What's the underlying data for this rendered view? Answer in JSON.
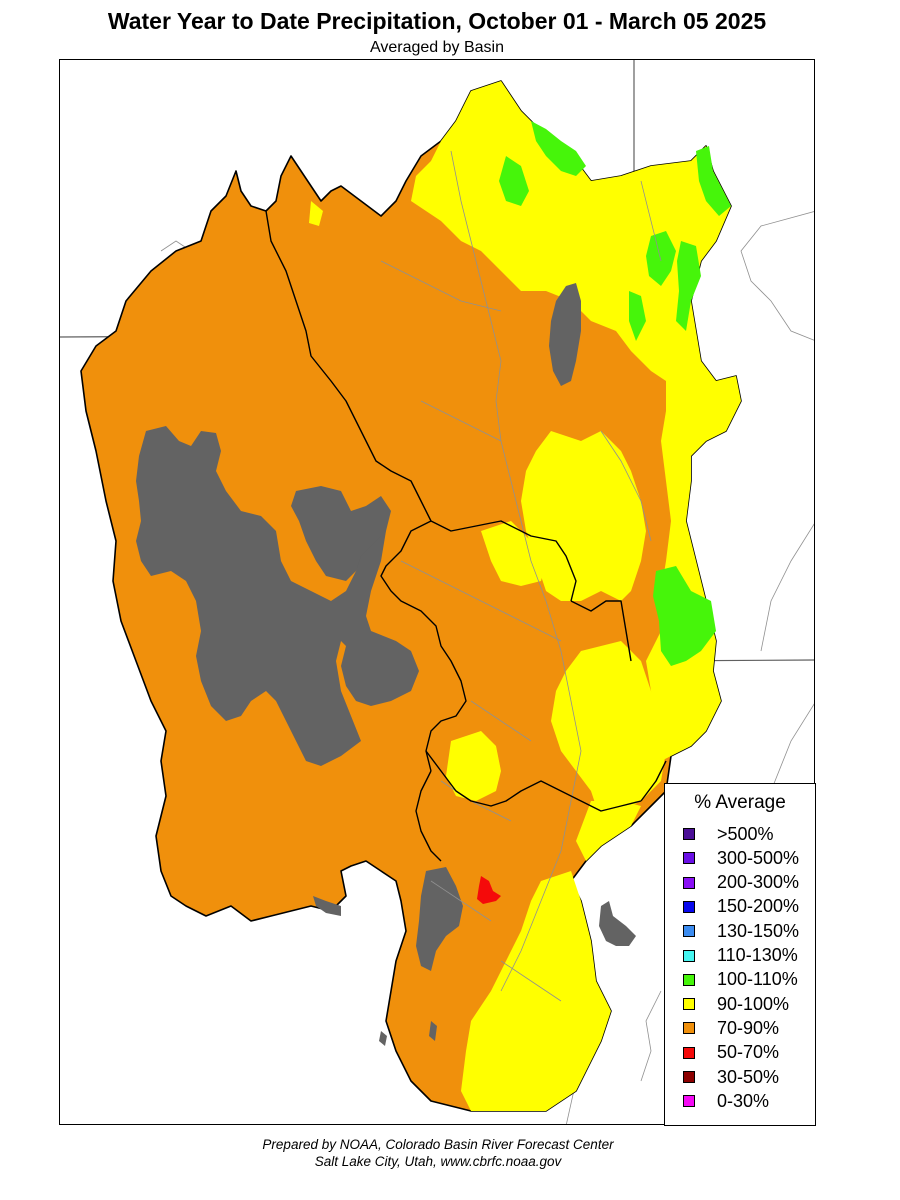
{
  "title": "Water Year to Date Precipitation, October 01  - March 05 2025",
  "subtitle": "Averaged by Basin",
  "legend": {
    "title": "% Average",
    "items": [
      {
        "label": ">500%",
        "color": "#4b0f96"
      },
      {
        "label": "300-500%",
        "color": "#6a10e6"
      },
      {
        "label": "200-300%",
        "color": "#8a10f5"
      },
      {
        "label": "150-200%",
        "color": "#0808ee"
      },
      {
        "label": "130-150%",
        "color": "#3c8cf0"
      },
      {
        "label": "110-130%",
        "color": "#46f5f0"
      },
      {
        "label": "100-110%",
        "color": "#46f50a"
      },
      {
        "label": "90-100%",
        "color": "#ffff00"
      },
      {
        "label": "70-90%",
        "color": "#f0900c"
      },
      {
        "label": "50-70%",
        "color": "#f50a0a"
      },
      {
        "label": "30-50%",
        "color": "#8c0000"
      },
      {
        "label": "0-30%",
        "color": "#f50af5"
      }
    ]
  },
  "colors": {
    "lake": "#636363",
    "pct_70_90": "#f0900c",
    "pct_90_100": "#ffff00",
    "pct_100_110": "#46f50a",
    "pct_50_70": "#f50a0a",
    "boundary": "#000000",
    "state_line": "#606060",
    "river": "#909090"
  },
  "footer": {
    "line1": "Prepared by NOAA, Colorado Basin River Forecast Center",
    "line2": "Salt Lake City, Utah, www.cbrfc.noaa.gov"
  }
}
